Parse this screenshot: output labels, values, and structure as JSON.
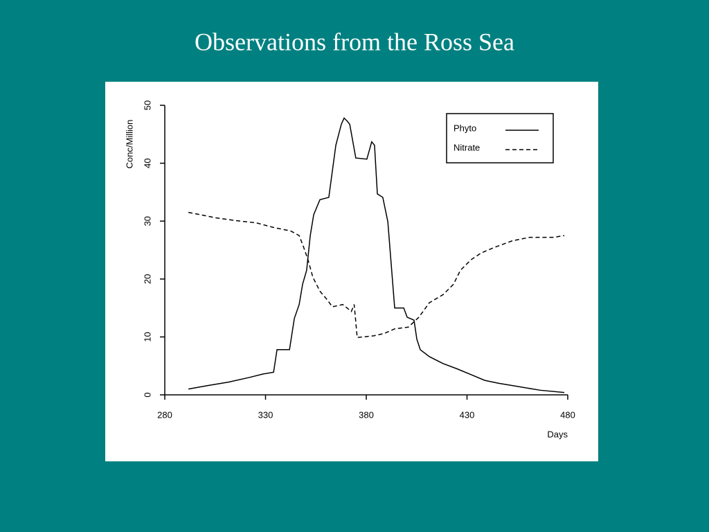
{
  "chart_data": {
    "type": "line",
    "title": "Observations from the Ross Sea",
    "x_label": "Days",
    "y_label": "Conc/Million",
    "xlim": [
      280,
      480
    ],
    "xticks": [
      280,
      330,
      380,
      430,
      480
    ],
    "ylim": [
      0,
      50
    ],
    "yticks": [
      0,
      10,
      20,
      30,
      40,
      50
    ],
    "legend": "upper right",
    "series": [
      {
        "name": "Phyto",
        "color": "#000000",
        "dash": "solid",
        "x": [
          291.7,
          301.3,
          311.6,
          321.9,
          328.8,
          334,
          335.7,
          341.9,
          344.3,
          346.7,
          348.4,
          350.4,
          352.2,
          353.9,
          357,
          361.4,
          364.9,
          367.6,
          369,
          370.7,
          371.8,
          374.8,
          380.3,
          382.7,
          384.1,
          385.5,
          388.2,
          390.7,
          394.1,
          398.6,
          400.3,
          403.7,
          405.1,
          406.8,
          411.3,
          418.1,
          425,
          431.9,
          438.8,
          445.6,
          455.9,
          466.3,
          478.3
        ],
        "values": [
          1.0,
          1.6,
          2.2,
          3.0,
          3.6,
          3.9,
          7.8,
          7.8,
          13.2,
          15.6,
          19.1,
          21.5,
          27.5,
          31.1,
          33.7,
          34.1,
          43.1,
          46.7,
          47.8,
          47.2,
          46.7,
          40.9,
          40.7,
          43.7,
          43.1,
          34.7,
          34.1,
          29.9,
          15.0,
          15.0,
          13.4,
          12.9,
          9.6,
          7.8,
          6.6,
          5.4,
          4.5,
          3.5,
          2.5,
          2.0,
          1.4,
          0.8,
          0.4
        ]
      },
      {
        "name": "Nitrate",
        "color": "#000000",
        "dash": "dashed",
        "x": [
          291.7,
          297.9,
          304.7,
          315,
          325.4,
          334,
          342.5,
          346.7,
          348.7,
          351.1,
          353.5,
          357,
          360.4,
          363.2,
          368.3,
          372.6,
          374,
          375.5,
          383.8,
          388.9,
          394.1,
          400.9,
          406.1,
          411.3,
          418.1,
          423.3,
          426.7,
          431.9,
          437,
          443.9,
          452.5,
          461.1,
          473.1,
          478.3
        ],
        "values": [
          31.5,
          31.1,
          30.6,
          30.1,
          29.7,
          28.9,
          28.3,
          27.5,
          25.7,
          23.3,
          20.3,
          17.9,
          16.5,
          15.2,
          15.6,
          14.4,
          15.6,
          9.9,
          10.2,
          10.6,
          11.4,
          11.7,
          13.4,
          15.9,
          17.3,
          19.1,
          21.5,
          23.3,
          24.5,
          25.5,
          26.6,
          27.2,
          27.2,
          27.5
        ]
      }
    ]
  }
}
